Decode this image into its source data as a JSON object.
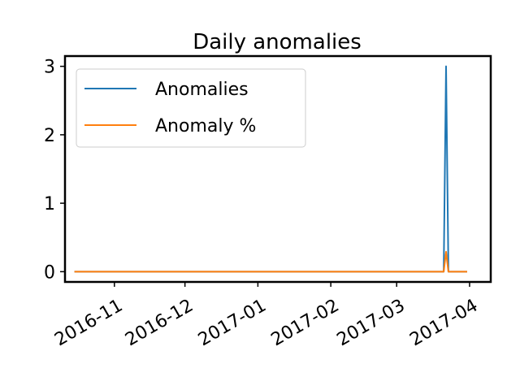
{
  "chart_data": {
    "type": "line",
    "title": "Daily anomalies",
    "xlabel": "",
    "ylabel": "",
    "x_ticks": [
      "2016-11",
      "2016-12",
      "2017-01",
      "2017-02",
      "2017-03",
      "2017-04"
    ],
    "y_ticks": [
      "0",
      "1",
      "2",
      "3"
    ],
    "ylim": [
      -0.15,
      3.15
    ],
    "xlim": [
      "2016-10-11",
      "2017-04-10"
    ],
    "grid": false,
    "legend_position": "top-left",
    "series": [
      {
        "name": "Anomalies",
        "color": "#1f77b4",
        "points": [
          {
            "x": "2016-10-15",
            "y": 0
          },
          {
            "x": "2017-03-21",
            "y": 0
          },
          {
            "x": "2017-03-22",
            "y": 3
          },
          {
            "x": "2017-03-23",
            "y": 0
          },
          {
            "x": "2017-03-31",
            "y": 0
          }
        ]
      },
      {
        "name": "Anomaly %",
        "color": "#ff7f0e",
        "points": [
          {
            "x": "2016-10-15",
            "y": 0
          },
          {
            "x": "2017-03-21",
            "y": 0
          },
          {
            "x": "2017-03-22",
            "y": 0.29
          },
          {
            "x": "2017-03-23",
            "y": 0
          },
          {
            "x": "2017-03-31",
            "y": 0
          }
        ]
      }
    ]
  }
}
